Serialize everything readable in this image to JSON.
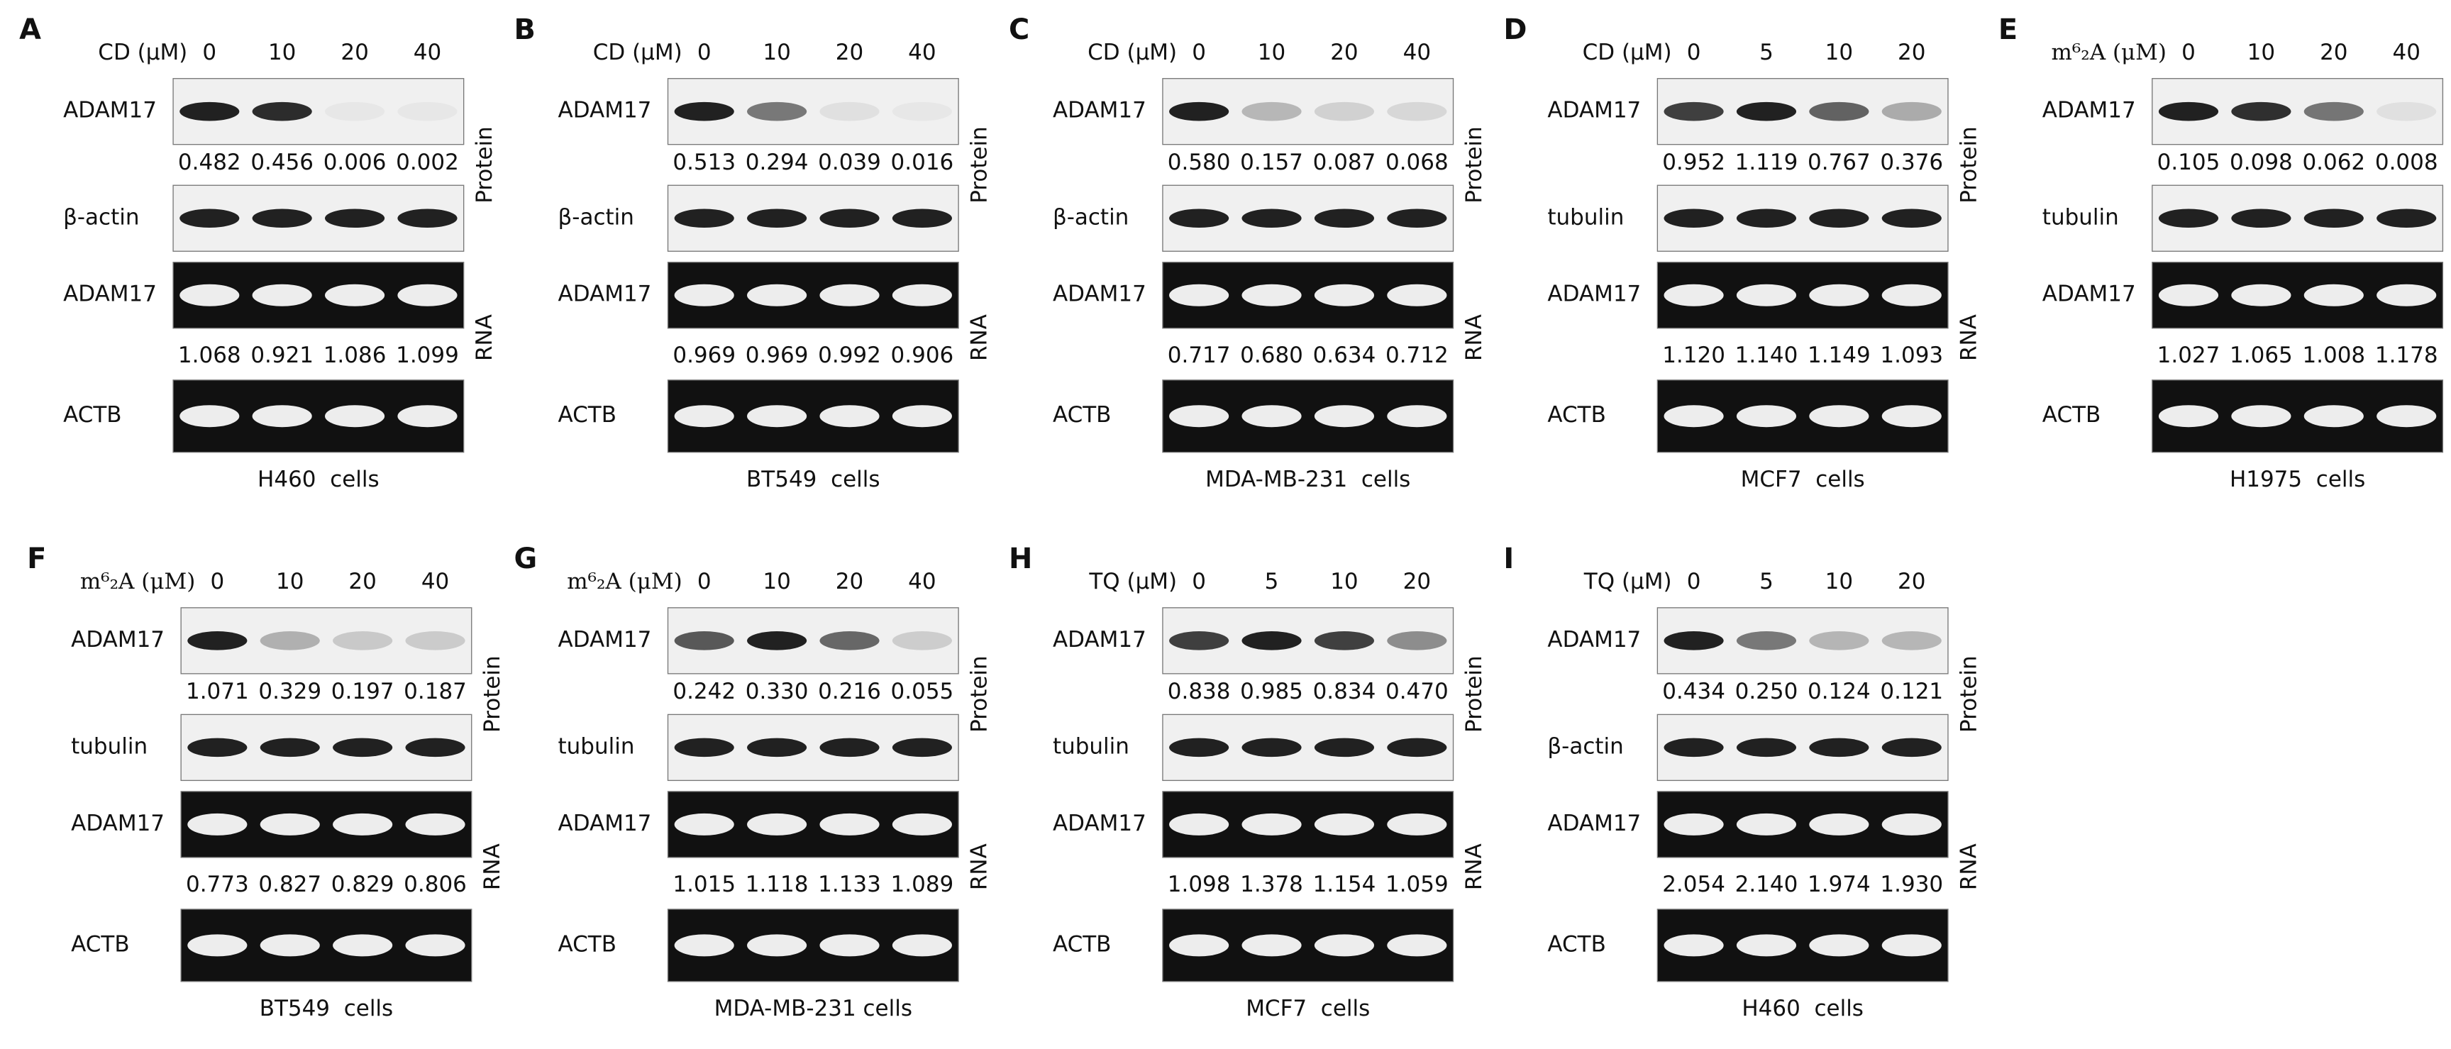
{
  "side_labels": {
    "protein": "Protein",
    "rna": "RNA"
  },
  "panels": [
    {
      "letter": "A",
      "treatment": "CD (μM)",
      "doses": [
        0,
        10,
        20,
        40
      ],
      "protein": {
        "label": "ADAM17",
        "values": [
          "0.482",
          "0.456",
          "0.006",
          "0.002"
        ]
      },
      "loading": {
        "label": "β-actin"
      },
      "rna": {
        "label": "ADAM17",
        "values": [
          "1.068",
          "0.921",
          "1.086",
          "1.099"
        ]
      },
      "reference": {
        "label": "ACTB"
      },
      "cells": "H460  cells"
    },
    {
      "letter": "B",
      "treatment": "CD (μM)",
      "doses": [
        0,
        10,
        20,
        40
      ],
      "protein": {
        "label": "ADAM17",
        "values": [
          "0.513",
          "0.294",
          "0.039",
          "0.016"
        ]
      },
      "loading": {
        "label": "β-actin"
      },
      "rna": {
        "label": "ADAM17",
        "values": [
          "0.969",
          "0.969",
          "0.992",
          "0.906"
        ]
      },
      "reference": {
        "label": "ACTB"
      },
      "cells": "BT549  cells"
    },
    {
      "letter": "C",
      "treatment": "CD (μM)",
      "doses": [
        0,
        10,
        20,
        40
      ],
      "protein": {
        "label": "ADAM17",
        "values": [
          "0.580",
          "0.157",
          "0.087",
          "0.068"
        ]
      },
      "loading": {
        "label": "β-actin"
      },
      "rna": {
        "label": "ADAM17",
        "values": [
          "0.717",
          "0.680",
          "0.634",
          "0.712"
        ]
      },
      "reference": {
        "label": "ACTB"
      },
      "cells": "MDA-MB-231  cells"
    },
    {
      "letter": "D",
      "treatment": "CD (μM)",
      "doses": [
        0,
        5,
        10,
        20
      ],
      "protein": {
        "label": "ADAM17",
        "values": [
          "0.952",
          "1.119",
          "0.767",
          "0.376"
        ]
      },
      "loading": {
        "label": "tubulin"
      },
      "rna": {
        "label": "ADAM17",
        "values": [
          "1.120",
          "1.140",
          "1.149",
          "1.093"
        ]
      },
      "reference": {
        "label": "ACTB"
      },
      "cells": "MCF7  cells"
    },
    {
      "letter": "E",
      "treatment": "m⁶₂A (μM)",
      "doses": [
        0,
        10,
        20,
        40
      ],
      "protein": {
        "label": "ADAM17",
        "values": [
          "0.105",
          "0.098",
          "0.062",
          "0.008"
        ]
      },
      "loading": {
        "label": "tubulin"
      },
      "rna": {
        "label": "ADAM17",
        "values": [
          "1.027",
          "1.065",
          "1.008",
          "1.178"
        ]
      },
      "reference": {
        "label": "ACTB"
      },
      "cells": "H1975  cells"
    },
    {
      "letter": "F",
      "treatment": "m⁶₂A (μM)",
      "doses": [
        0,
        10,
        20,
        40
      ],
      "protein": {
        "label": "ADAM17",
        "values": [
          "1.071",
          "0.329",
          "0.197",
          "0.187"
        ]
      },
      "loading": {
        "label": "tubulin"
      },
      "rna": {
        "label": "ADAM17",
        "values": [
          "0.773",
          "0.827",
          "0.829",
          "0.806"
        ]
      },
      "reference": {
        "label": "ACTB"
      },
      "cells": "BT549  cells"
    },
    {
      "letter": "G",
      "treatment": "m⁶₂A (μM)",
      "doses": [
        0,
        10,
        20,
        40
      ],
      "protein": {
        "label": "ADAM17",
        "values": [
          "0.242",
          "0.330",
          "0.216",
          "0.055"
        ]
      },
      "loading": {
        "label": "tubulin"
      },
      "rna": {
        "label": "ADAM17",
        "values": [
          "1.015",
          "1.118",
          "1.133",
          "1.089"
        ]
      },
      "reference": {
        "label": "ACTB"
      },
      "cells": "MDA-MB-231 cells"
    },
    {
      "letter": "H",
      "treatment": "TQ (μM)",
      "doses": [
        0,
        5,
        10,
        20
      ],
      "protein": {
        "label": "ADAM17",
        "values": [
          "0.838",
          "0.985",
          "0.834",
          "0.470"
        ]
      },
      "loading": {
        "label": "tubulin"
      },
      "rna": {
        "label": "ADAM17",
        "values": [
          "1.098",
          "1.378",
          "1.154",
          "1.059"
        ]
      },
      "reference": {
        "label": "ACTB"
      },
      "cells": "MCF7  cells"
    },
    {
      "letter": "I",
      "treatment": "TQ (μM)",
      "doses": [
        0,
        5,
        10,
        20
      ],
      "protein": {
        "label": "ADAM17",
        "values": [
          "0.434",
          "0.250",
          "0.124",
          "0.121"
        ]
      },
      "loading": {
        "label": "β-actin"
      },
      "rna": {
        "label": "ADAM17",
        "values": [
          "2.054",
          "2.140",
          "1.974",
          "1.930"
        ]
      },
      "reference": {
        "label": "ACTB"
      },
      "cells": "H460  cells"
    }
  ]
}
